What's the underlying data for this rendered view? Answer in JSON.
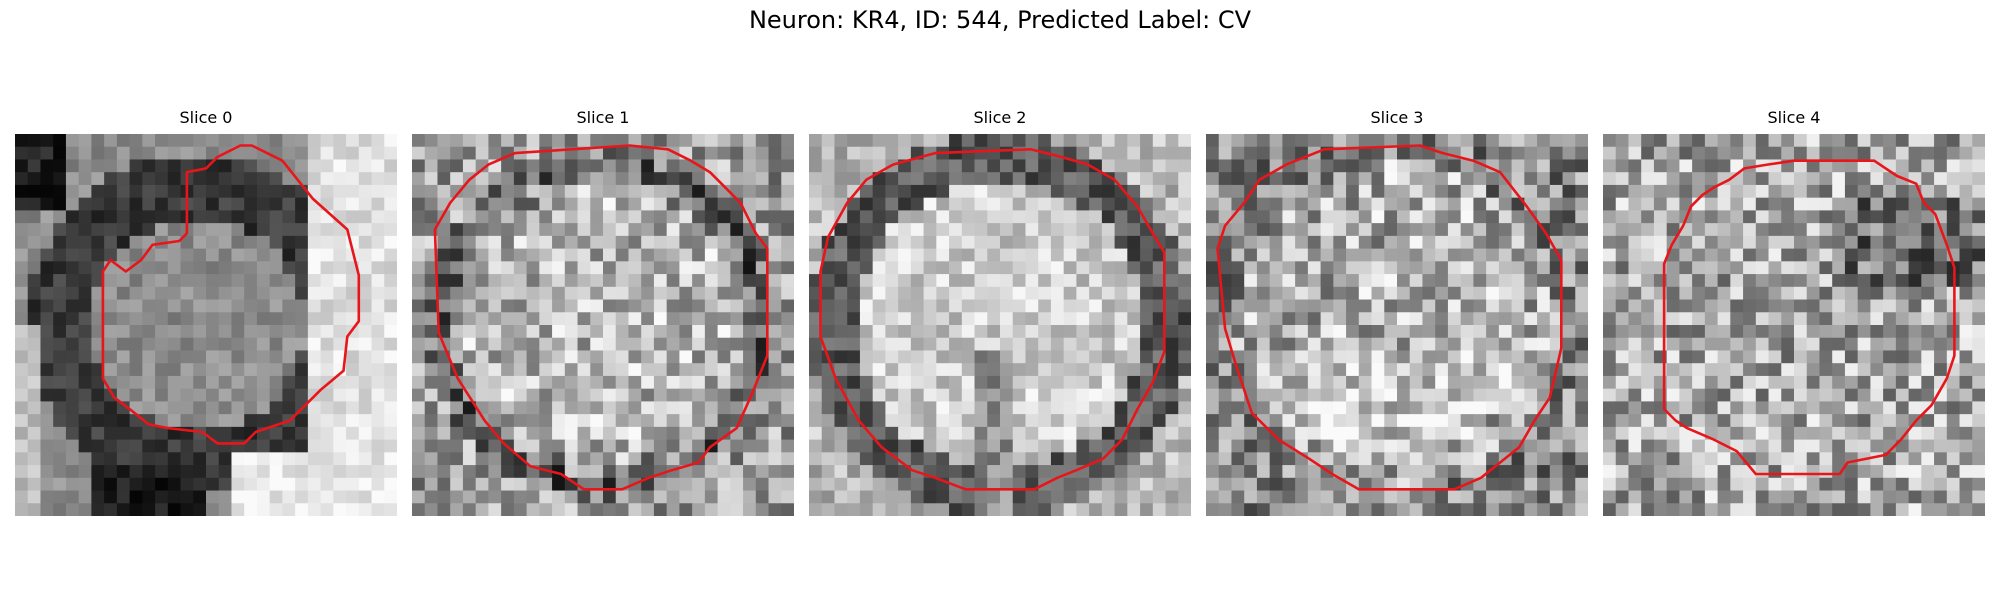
{
  "figure": {
    "title": "Neuron: KR4, ID: 544, Predicted Label: CV"
  },
  "panels": [
    {
      "title": "Slice 0",
      "pattern": "cell-edge",
      "seed": 11,
      "contour": [
        [
          0.62,
          0.03
        ],
        [
          0.7,
          0.07
        ],
        [
          0.78,
          0.17
        ],
        [
          0.87,
          0.25
        ],
        [
          0.9,
          0.37
        ],
        [
          0.9,
          0.49
        ],
        [
          0.87,
          0.53
        ],
        [
          0.86,
          0.62
        ],
        [
          0.8,
          0.67
        ],
        [
          0.76,
          0.71
        ],
        [
          0.72,
          0.75
        ],
        [
          0.63,
          0.78
        ],
        [
          0.6,
          0.81
        ],
        [
          0.53,
          0.81
        ],
        [
          0.49,
          0.78
        ],
        [
          0.4,
          0.77
        ],
        [
          0.35,
          0.76
        ],
        [
          0.3,
          0.72
        ],
        [
          0.26,
          0.69
        ],
        [
          0.23,
          0.64
        ],
        [
          0.23,
          0.36
        ],
        [
          0.25,
          0.33
        ],
        [
          0.29,
          0.36
        ],
        [
          0.33,
          0.33
        ],
        [
          0.36,
          0.29
        ],
        [
          0.43,
          0.28
        ],
        [
          0.45,
          0.26
        ],
        [
          0.45,
          0.1
        ],
        [
          0.5,
          0.09
        ],
        [
          0.53,
          0.06
        ],
        [
          0.59,
          0.03
        ]
      ],
      "contour_color": "#e8161b"
    },
    {
      "title": "Slice 1",
      "pattern": "round-dark-ring",
      "seed": 23,
      "contour": [
        [
          0.27,
          0.05
        ],
        [
          0.57,
          0.03
        ],
        [
          0.67,
          0.04
        ],
        [
          0.73,
          0.07
        ],
        [
          0.78,
          0.1
        ],
        [
          0.86,
          0.18
        ],
        [
          0.9,
          0.26
        ],
        [
          0.93,
          0.3
        ],
        [
          0.93,
          0.58
        ],
        [
          0.89,
          0.68
        ],
        [
          0.85,
          0.77
        ],
        [
          0.78,
          0.82
        ],
        [
          0.75,
          0.86
        ],
        [
          0.68,
          0.88
        ],
        [
          0.62,
          0.9
        ],
        [
          0.55,
          0.93
        ],
        [
          0.45,
          0.93
        ],
        [
          0.39,
          0.89
        ],
        [
          0.31,
          0.87
        ],
        [
          0.24,
          0.81
        ],
        [
          0.19,
          0.75
        ],
        [
          0.12,
          0.64
        ],
        [
          0.07,
          0.52
        ],
        [
          0.06,
          0.25
        ],
        [
          0.1,
          0.18
        ],
        [
          0.15,
          0.12
        ],
        [
          0.2,
          0.08
        ]
      ],
      "contour_color": "#e8161b"
    },
    {
      "title": "Slice 2",
      "pattern": "round-light",
      "seed": 37,
      "contour": [
        [
          0.33,
          0.05
        ],
        [
          0.58,
          0.04
        ],
        [
          0.66,
          0.06
        ],
        [
          0.73,
          0.08
        ],
        [
          0.8,
          0.12
        ],
        [
          0.86,
          0.19
        ],
        [
          0.9,
          0.26
        ],
        [
          0.93,
          0.31
        ],
        [
          0.93,
          0.57
        ],
        [
          0.9,
          0.65
        ],
        [
          0.86,
          0.72
        ],
        [
          0.82,
          0.8
        ],
        [
          0.77,
          0.85
        ],
        [
          0.7,
          0.88
        ],
        [
          0.65,
          0.9
        ],
        [
          0.59,
          0.93
        ],
        [
          0.41,
          0.93
        ],
        [
          0.33,
          0.9
        ],
        [
          0.27,
          0.88
        ],
        [
          0.19,
          0.82
        ],
        [
          0.13,
          0.75
        ],
        [
          0.07,
          0.64
        ],
        [
          0.03,
          0.53
        ],
        [
          0.03,
          0.36
        ],
        [
          0.05,
          0.27
        ],
        [
          0.1,
          0.18
        ],
        [
          0.15,
          0.12
        ],
        [
          0.22,
          0.08
        ]
      ],
      "contour_color": "#e8161b"
    },
    {
      "title": "Slice 3",
      "pattern": "round-noisy",
      "seed": 51,
      "contour": [
        [
          0.31,
          0.04
        ],
        [
          0.56,
          0.03
        ],
        [
          0.62,
          0.05
        ],
        [
          0.7,
          0.07
        ],
        [
          0.77,
          0.1
        ],
        [
          0.84,
          0.19
        ],
        [
          0.89,
          0.26
        ],
        [
          0.93,
          0.33
        ],
        [
          0.93,
          0.56
        ],
        [
          0.9,
          0.69
        ],
        [
          0.86,
          0.75
        ],
        [
          0.82,
          0.82
        ],
        [
          0.77,
          0.86
        ],
        [
          0.72,
          0.9
        ],
        [
          0.65,
          0.93
        ],
        [
          0.4,
          0.93
        ],
        [
          0.33,
          0.89
        ],
        [
          0.27,
          0.85
        ],
        [
          0.19,
          0.8
        ],
        [
          0.12,
          0.73
        ],
        [
          0.08,
          0.61
        ],
        [
          0.05,
          0.51
        ],
        [
          0.03,
          0.3
        ],
        [
          0.05,
          0.24
        ],
        [
          0.1,
          0.18
        ],
        [
          0.14,
          0.12
        ],
        [
          0.21,
          0.08
        ]
      ],
      "contour_color": "#e8161b"
    },
    {
      "title": "Slice 4",
      "pattern": "faint-noisy",
      "seed": 67,
      "contour": [
        [
          0.5,
          0.07
        ],
        [
          0.71,
          0.07
        ],
        [
          0.74,
          0.09
        ],
        [
          0.77,
          0.11
        ],
        [
          0.82,
          0.13
        ],
        [
          0.84,
          0.18
        ],
        [
          0.87,
          0.21
        ],
        [
          0.9,
          0.29
        ],
        [
          0.92,
          0.35
        ],
        [
          0.92,
          0.58
        ],
        [
          0.9,
          0.64
        ],
        [
          0.86,
          0.71
        ],
        [
          0.82,
          0.75
        ],
        [
          0.78,
          0.8
        ],
        [
          0.74,
          0.84
        ],
        [
          0.64,
          0.86
        ],
        [
          0.62,
          0.89
        ],
        [
          0.4,
          0.89
        ],
        [
          0.35,
          0.83
        ],
        [
          0.29,
          0.8
        ],
        [
          0.22,
          0.77
        ],
        [
          0.19,
          0.75
        ],
        [
          0.16,
          0.72
        ],
        [
          0.16,
          0.34
        ],
        [
          0.18,
          0.29
        ],
        [
          0.21,
          0.24
        ],
        [
          0.23,
          0.19
        ],
        [
          0.26,
          0.16
        ],
        [
          0.29,
          0.14
        ],
        [
          0.33,
          0.12
        ],
        [
          0.37,
          0.09
        ],
        [
          0.43,
          0.08
        ]
      ],
      "contour_color": "#e8161b"
    }
  ]
}
